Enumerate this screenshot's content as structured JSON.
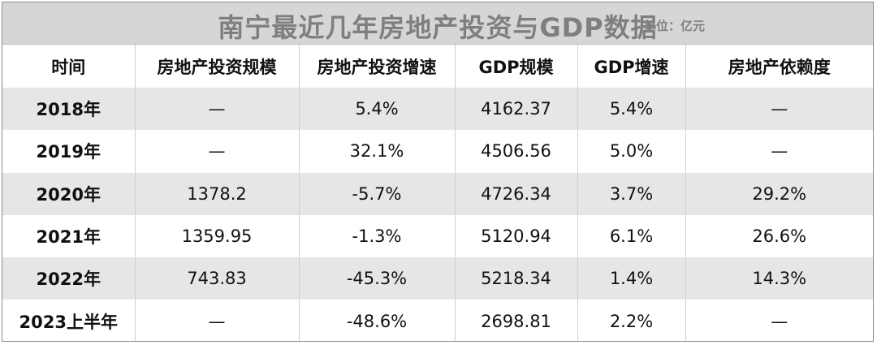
{
  "title": "南宁最近几年房地产投资与GDP数据",
  "unit": "单位：亿元",
  "headers": [
    "时间",
    "房地产投资规模",
    "房地产投资增速",
    "GDP规模",
    "GDP增速",
    "房地产依赖度"
  ],
  "rows": [
    {
      "year": "2018年",
      "invest": "—",
      "invest_growth": "5.4%",
      "gdp": "4162.37",
      "gdp_growth": "5.4%",
      "dependency": "—"
    },
    {
      "year": "2019年",
      "invest": "—",
      "invest_growth": "32.1%",
      "gdp": "4506.56",
      "gdp_growth": "5.0%",
      "dependency": "—"
    },
    {
      "year": "2020年",
      "invest": "1378.2",
      "invest_growth": "-5.7%",
      "gdp": "4726.34",
      "gdp_growth": "3.7%",
      "dependency": "29.2%"
    },
    {
      "year": "2021年",
      "invest": "1359.95",
      "invest_growth": "-1.3%",
      "gdp": "5120.94",
      "gdp_growth": "6.1%",
      "dependency": "26.6%"
    },
    {
      "year": "2022年",
      "invest": "743.83",
      "invest_growth": "-45.3%",
      "gdp": "5218.34",
      "gdp_growth": "1.4%",
      "dependency": "14.3%"
    },
    {
      "year": "2023上半年",
      "invest": "—",
      "invest_growth": "-48.6%",
      "gdp": "2698.81",
      "gdp_growth": "2.2%",
      "dependency": "—"
    }
  ]
}
